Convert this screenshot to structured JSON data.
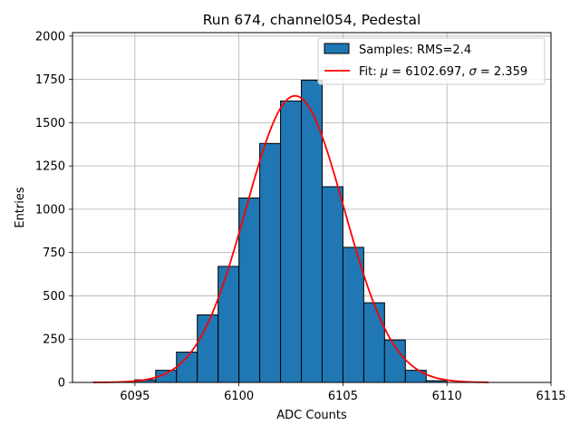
{
  "chart_data": {
    "type": "bar",
    "title": "Run 674, channel054, Pedestal",
    "xlabel": "ADC Counts",
    "ylabel": "Entries",
    "xlim": [
      6092,
      6115
    ],
    "ylim": [
      0,
      2020
    ],
    "xticks": [
      6095,
      6100,
      6105,
      6110,
      6115
    ],
    "yticks": [
      0,
      250,
      500,
      750,
      1000,
      1250,
      1500,
      1750,
      2000
    ],
    "grid": true,
    "legend_position": "top-right",
    "histogram": {
      "name": "Samples: RMS=2.4",
      "bin_width": 1,
      "bin_starts": [
        6095,
        6096,
        6097,
        6098,
        6099,
        6100,
        6101,
        6102,
        6103,
        6104,
        6105,
        6106,
        6107,
        6108,
        6109
      ],
      "counts": [
        15,
        70,
        175,
        390,
        670,
        1065,
        1380,
        1625,
        1745,
        1130,
        780,
        460,
        245,
        70,
        10
      ],
      "color": "#1f77b4",
      "edge_color": "#000000"
    },
    "fit": {
      "name_prefix": "Fit: ",
      "mu_symbol": "μ",
      "mu_value": " = 6102.697, ",
      "sigma_symbol": "σ",
      "sigma_value": " = 2.359",
      "mu": 6102.697,
      "sigma": 2.359,
      "amplitude": 1655,
      "x_range": [
        6093,
        6112
      ],
      "color": "#ff0000"
    }
  }
}
